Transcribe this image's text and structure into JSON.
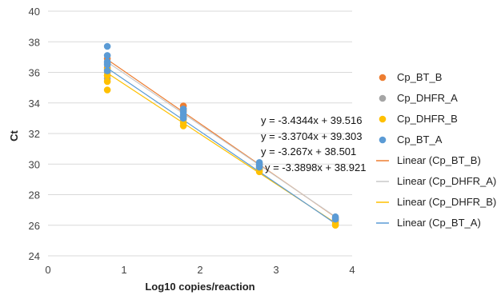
{
  "chart_data": {
    "type": "scatter",
    "title": "",
    "xlabel": "Log10 copies/reaction",
    "ylabel": "Ct",
    "xlim": [
      0,
      4
    ],
    "ylim": [
      24,
      40
    ],
    "x_ticks": [
      "0",
      "1",
      "2",
      "3",
      "4"
    ],
    "y_ticks": [
      "24",
      "26",
      "28",
      "30",
      "32",
      "34",
      "36",
      "38",
      "40"
    ],
    "grid": "horizontal",
    "legend_position": "right",
    "series": [
      {
        "name": "Cp_BT_B",
        "color": "#ED7D31",
        "points": [
          [
            0.78,
            36.9
          ],
          [
            0.78,
            36.3
          ],
          [
            0.78,
            35.8
          ],
          [
            1.78,
            33.8
          ],
          [
            1.78,
            33.5
          ],
          [
            1.78,
            33.1
          ],
          [
            2.78,
            30.0
          ],
          [
            2.78,
            29.8
          ],
          [
            3.78,
            26.5
          ],
          [
            3.78,
            26.3
          ]
        ]
      },
      {
        "name": "Cp_DHFR_A",
        "color": "#A5A5A5",
        "points": [
          [
            0.78,
            36.6
          ],
          [
            0.78,
            36.0
          ],
          [
            0.78,
            35.6
          ],
          [
            1.78,
            33.6
          ],
          [
            1.78,
            33.2
          ],
          [
            1.78,
            32.9
          ],
          [
            2.78,
            29.9
          ],
          [
            2.78,
            29.6
          ],
          [
            3.78,
            26.4
          ],
          [
            3.78,
            26.2
          ]
        ]
      },
      {
        "name": "Cp_DHFR_B",
        "color": "#FFC000",
        "points": [
          [
            0.78,
            36.2
          ],
          [
            0.78,
            35.8
          ],
          [
            0.78,
            35.4
          ],
          [
            0.78,
            34.85
          ],
          [
            1.78,
            33.0
          ],
          [
            1.78,
            32.7
          ],
          [
            1.78,
            32.5
          ],
          [
            2.78,
            29.7
          ],
          [
            2.78,
            29.5
          ],
          [
            3.78,
            26.1
          ],
          [
            3.78,
            26.0
          ]
        ]
      },
      {
        "name": "Cp_BT_A",
        "color": "#5B9BD5",
        "points": [
          [
            0.78,
            37.7
          ],
          [
            0.78,
            37.1
          ],
          [
            0.78,
            36.7
          ],
          [
            0.78,
            36.5
          ],
          [
            0.78,
            36.1
          ],
          [
            1.78,
            33.6
          ],
          [
            1.78,
            33.4
          ],
          [
            1.78,
            33.2
          ],
          [
            1.78,
            33.0
          ],
          [
            2.78,
            30.1
          ],
          [
            2.78,
            29.95
          ],
          [
            2.78,
            29.8
          ],
          [
            3.78,
            26.55
          ],
          [
            3.78,
            26.4
          ]
        ]
      }
    ],
    "trendlines": [
      {
        "name": "Linear (Cp_BT_B)",
        "color": "#ED7D31",
        "slope": -3.4344,
        "intercept": 39.516,
        "x_range": [
          0.78,
          3.78
        ]
      },
      {
        "name": "Linear (Cp_DHFR_A)",
        "color": "#C8C8C8",
        "slope": -3.3704,
        "intercept": 39.303,
        "x_range": [
          0.78,
          3.78
        ]
      },
      {
        "name": "Linear (Cp_DHFR_B)",
        "color": "#FFC000",
        "slope": -3.267,
        "intercept": 38.501,
        "x_range": [
          0.78,
          3.78
        ]
      },
      {
        "name": "Linear (Cp_BT_A)",
        "color": "#5B9BD5",
        "slope": -3.3898,
        "intercept": 38.921,
        "x_range": [
          0.78,
          3.78
        ]
      }
    ],
    "equations": [
      "y = -3.4344x + 39.516",
      "y = -3.3704x + 39.303",
      "y = -3.267x + 38.501",
      "y = -3.3898x + 38.921"
    ]
  }
}
